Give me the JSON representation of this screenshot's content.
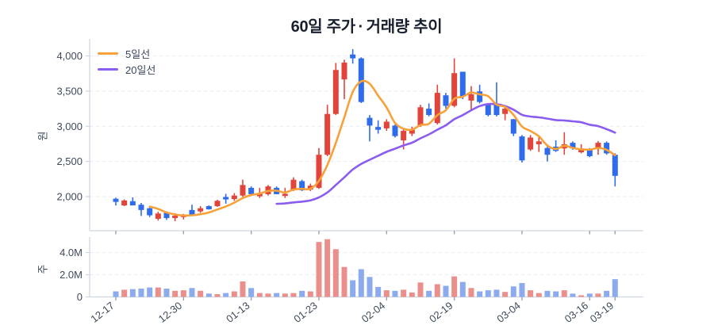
{
  "title": "60일 주가·거래량 추이",
  "legend": [
    {
      "label": "5일선",
      "color": "#f7a13a"
    },
    {
      "label": "20일선",
      "color": "#8b5cf0"
    }
  ],
  "price_axis": {
    "unit_label": "원",
    "tick_labels": [
      "2,000",
      "2,500",
      "3,000",
      "3,500",
      "4,000"
    ],
    "tick_values": [
      2000,
      2500,
      3000,
      3500,
      4000
    ]
  },
  "volume_axis": {
    "unit_label": "주",
    "tick_labels": [
      "0",
      "2.0M",
      "4.0M"
    ],
    "tick_values": [
      0,
      2,
      4
    ],
    "unit": "millions of shares"
  },
  "colors": {
    "candle_up": "#e0443a",
    "candle_down": "#2e6ceb",
    "volume_up": "#ea8f8c",
    "volume_down": "#8cabef",
    "ma5": "#f7a13a",
    "ma20": "#8b5cf0",
    "grid": "#e6e9ee",
    "axis": "#cfd6df",
    "tick_text": "#3d4a5c"
  },
  "chart_data": {
    "type": "candlestick+volume",
    "title": "60일 주가·거래량 추이",
    "x_tick_labels": [
      "12-17",
      "12-30",
      "01-13",
      "01-23",
      "02-04",
      "02-19",
      "03-04",
      "03-16",
      "03-19"
    ],
    "x_tick_indices": [
      0,
      8,
      16,
      24,
      32,
      40,
      48,
      56,
      59
    ],
    "price_range": [
      1516,
      4242
    ],
    "volume_range_millions": [
      0,
      5.4
    ],
    "overlays": [
      {
        "name": "5일선",
        "type": "sma",
        "window": 5
      },
      {
        "name": "20일선",
        "type": "sma",
        "window": 20
      }
    ],
    "ohlcv_note": "[open, high, low, close, volume_millions] per trading day, 60 days",
    "candles": [
      [
        1970,
        1985,
        1875,
        1925,
        0.5
      ],
      [
        1875,
        1960,
        1865,
        1945,
        0.65
      ],
      [
        1935,
        1990,
        1875,
        1875,
        0.7
      ],
      [
        1885,
        1910,
        1725,
        1810,
        0.75
      ],
      [
        1835,
        1845,
        1710,
        1735,
        0.85
      ],
      [
        1685,
        1785,
        1660,
        1760,
        0.85
      ],
      [
        1770,
        1790,
        1670,
        1695,
        0.75
      ],
      [
        1695,
        1765,
        1650,
        1730,
        0.55
      ],
      [
        1710,
        1755,
        1675,
        1745,
        0.6
      ],
      [
        1810,
        1885,
        1735,
        1745,
        0.8
      ],
      [
        1790,
        1865,
        1770,
        1835,
        0.55
      ],
      [
        1865,
        1875,
        1815,
        1820,
        0.3
      ],
      [
        1865,
        1955,
        1855,
        1940,
        0.25
      ],
      [
        1995,
        2040,
        1900,
        1960,
        0.35
      ],
      [
        1965,
        2050,
        1940,
        2015,
        0.5
      ],
      [
        2015,
        2240,
        1995,
        2165,
        1.4
      ],
      [
        2125,
        2145,
        2015,
        2035,
        0.8
      ],
      [
        2005,
        2125,
        1980,
        2040,
        0.35
      ],
      [
        2035,
        2165,
        2015,
        2145,
        0.3
      ],
      [
        2125,
        2145,
        2035,
        2035,
        0.35
      ],
      [
        2010,
        2125,
        1980,
        2040,
        0.3
      ],
      [
        2100,
        2275,
        2080,
        2240,
        0.35
      ],
      [
        2220,
        2240,
        2080,
        2090,
        0.55
      ],
      [
        2100,
        2185,
        2080,
        2155,
        0.5
      ],
      [
        2125,
        2690,
        2110,
        2595,
        4.95
      ],
      [
        2595,
        3305,
        2575,
        3175,
        5.2
      ],
      [
        3175,
        3900,
        3160,
        3800,
        4.3
      ],
      [
        3665,
        3945,
        3385,
        3905,
        2.7
      ],
      [
        4020,
        4095,
        3890,
        3965,
        1.5
      ],
      [
        3965,
        3980,
        3330,
        3345,
        2.5
      ],
      [
        3120,
        3160,
        2785,
        3010,
        1.8
      ],
      [
        2990,
        3085,
        2895,
        2950,
        0.9
      ],
      [
        2970,
        3100,
        2935,
        3065,
        0.6
      ],
      [
        3010,
        3025,
        2840,
        2860,
        0.55
      ],
      [
        2800,
        2970,
        2670,
        2935,
        0.65
      ],
      [
        2895,
        2995,
        2860,
        2950,
        0.4
      ],
      [
        3010,
        3305,
        2990,
        3270,
        1.3
      ],
      [
        3250,
        3325,
        3140,
        3160,
        0.55
      ],
      [
        3045,
        3590,
        3025,
        3475,
        1.15
      ],
      [
        3440,
        3475,
        3250,
        3290,
        1.0
      ],
      [
        3290,
        3965,
        3270,
        3755,
        1.85
      ],
      [
        3775,
        3775,
        3385,
        3420,
        1.35
      ],
      [
        3365,
        3570,
        3230,
        3455,
        0.8
      ],
      [
        3495,
        3590,
        3325,
        3345,
        0.5
      ],
      [
        3325,
        3330,
        3140,
        3160,
        0.6
      ],
      [
        3305,
        3625,
        3140,
        3160,
        0.65
      ],
      [
        3175,
        3270,
        3085,
        3250,
        0.45
      ],
      [
        3100,
        3105,
        2860,
        2895,
        0.95
      ],
      [
        2855,
        2875,
        2485,
        2515,
        1.25
      ],
      [
        2670,
        2875,
        2650,
        2840,
        0.6
      ],
      [
        2745,
        2875,
        2635,
        2785,
        0.35
      ],
      [
        2690,
        2710,
        2500,
        2595,
        0.55
      ],
      [
        2710,
        2800,
        2635,
        2650,
        0.5
      ],
      [
        2685,
        2915,
        2595,
        2745,
        0.6
      ],
      [
        2765,
        2785,
        2665,
        2685,
        0.3
      ],
      [
        2630,
        2745,
        2615,
        2685,
        0.15
      ],
      [
        2680,
        2690,
        2560,
        2575,
        0.3
      ],
      [
        2690,
        2790,
        2595,
        2765,
        0.3
      ],
      [
        2765,
        2785,
        2595,
        2615,
        0.55
      ],
      [
        2595,
        2615,
        2145,
        2295,
        1.6
      ]
    ]
  }
}
